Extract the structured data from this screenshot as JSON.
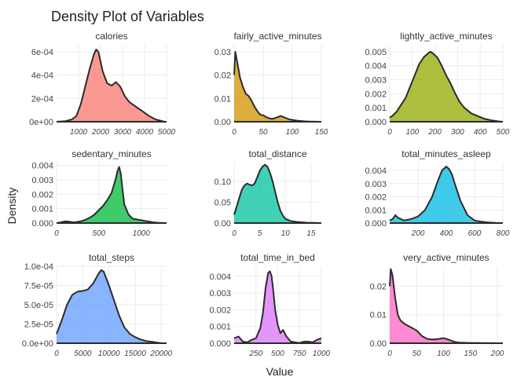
{
  "chart_data": {
    "type": "area",
    "title": "Density Plot of Variables",
    "xlabel": "Value",
    "ylabel": "Density",
    "grid": true,
    "legend": "none",
    "panels": [
      {
        "name": "calories",
        "color": "#F8766D",
        "xlim": [
          0,
          5000
        ],
        "ylim": [
          0,
          0.00066
        ],
        "xticks": [
          1000,
          2000,
          3000,
          4000,
          5000
        ],
        "yticks": [
          0,
          0.0002,
          0.0004,
          0.0006
        ],
        "ytick_labels": [
          "0e+00",
          "2e-04",
          "4e-04",
          "6e-04"
        ],
        "x": [
          0,
          400,
          700,
          900,
          1100,
          1300,
          1500,
          1700,
          1800,
          1900,
          2100,
          2300,
          2500,
          2700,
          2900,
          3100,
          3300,
          3600,
          3900,
          4200,
          4500,
          4900
        ],
        "y": [
          0,
          5e-06,
          2e-05,
          5e-05,
          0.00015,
          0.0003,
          0.00045,
          0.00058,
          0.00062,
          0.0006,
          0.00043,
          0.00033,
          0.00031,
          0.00034,
          0.0003,
          0.00022,
          0.00017,
          0.00013,
          9e-05,
          5e-05,
          2e-05,
          0
        ]
      },
      {
        "name": "fairly_active_minutes",
        "color": "#D39200",
        "xlim": [
          0,
          150
        ],
        "ylim": [
          0,
          0.033
        ],
        "xticks": [
          0,
          50,
          100,
          150
        ],
        "yticks": [
          0,
          0.01,
          0.02,
          0.03
        ],
        "ytick_labels": [
          "0.00",
          "0.01",
          "0.02",
          "0.03"
        ],
        "x": [
          0,
          2,
          5,
          10,
          15,
          20,
          25,
          30,
          35,
          40,
          45,
          50,
          55,
          60,
          65,
          70,
          75,
          80,
          85,
          90,
          95,
          100,
          110,
          120,
          130,
          140,
          145
        ],
        "y": [
          0.02,
          0.03,
          0.026,
          0.019,
          0.015,
          0.012,
          0.011,
          0.009,
          0.0065,
          0.0045,
          0.003,
          0.0028,
          0.002,
          0.0015,
          0.0012,
          0.0015,
          0.002,
          0.0025,
          0.002,
          0.0015,
          0.001,
          0.0008,
          0.0004,
          0.0002,
          0.0001,
          5e-05,
          0
        ]
      },
      {
        "name": "lightly_active_minutes",
        "color": "#93AA00",
        "xlim": [
          0,
          500
        ],
        "ylim": [
          0,
          0.0055
        ],
        "xticks": [
          0,
          100,
          200,
          300,
          400,
          500
        ],
        "yticks": [
          0,
          0.001,
          0.002,
          0.003,
          0.004,
          0.005
        ],
        "ytick_labels": [
          "0.000",
          "0.001",
          "0.002",
          "0.003",
          "0.004",
          "0.005"
        ],
        "x": [
          0,
          10,
          30,
          50,
          70,
          90,
          110,
          130,
          150,
          170,
          180,
          190,
          210,
          230,
          250,
          270,
          290,
          310,
          330,
          360,
          390,
          420,
          450,
          480,
          500
        ],
        "y": [
          0.0003,
          0.0004,
          0.0007,
          0.0012,
          0.0017,
          0.0025,
          0.0033,
          0.0041,
          0.0046,
          0.0049,
          0.005,
          0.0049,
          0.0046,
          0.004,
          0.0033,
          0.0027,
          0.002,
          0.0014,
          0.001,
          0.0006,
          0.0004,
          0.0002,
          0.0001,
          3e-05,
          0
        ]
      },
      {
        "name": "sedentary_minutes",
        "color": "#00BA38",
        "xlim": [
          0,
          1300
        ],
        "ylim": [
          0,
          0.0042
        ],
        "xticks": [
          0,
          500,
          1000
        ],
        "yticks": [
          0,
          0.001,
          0.002,
          0.003,
          0.004
        ],
        "ytick_labels": [
          "0.000",
          "0.001",
          "0.002",
          "0.003",
          "0.004"
        ],
        "x": [
          0,
          50,
          100,
          150,
          200,
          250,
          300,
          350,
          400,
          450,
          500,
          550,
          600,
          650,
          700,
          720,
          740,
          760,
          780,
          800,
          850,
          900,
          950,
          1000,
          1050,
          1100,
          1150,
          1200,
          1300
        ],
        "y": [
          0,
          5e-05,
          0.00012,
          0.0001,
          5e-05,
          8e-05,
          0.00015,
          0.00025,
          0.0004,
          0.0006,
          0.0009,
          0.0012,
          0.0016,
          0.0021,
          0.0031,
          0.0036,
          0.0039,
          0.0034,
          0.0023,
          0.0013,
          0.0006,
          0.0003,
          0.00025,
          0.0002,
          0.00015,
          0.0001,
          5e-05,
          2e-05,
          0
        ]
      },
      {
        "name": "total_distance",
        "color": "#00C19F",
        "xlim": [
          0,
          17
        ],
        "ylim": [
          0,
          0.145
        ],
        "xticks": [
          0,
          5,
          10,
          15
        ],
        "yticks": [
          0,
          0.05,
          0.1
        ],
        "ytick_labels": [
          "0.00",
          "0.05",
          "0.10"
        ],
        "x": [
          0,
          0.5,
          1,
          1.5,
          2,
          2.5,
          3,
          3.5,
          4,
          4.5,
          5,
          5.5,
          6,
          6.5,
          7,
          7.5,
          8,
          8.5,
          9,
          9.5,
          10,
          11,
          12,
          13,
          14,
          15,
          16,
          17
        ],
        "y": [
          0.02,
          0.04,
          0.06,
          0.08,
          0.09,
          0.095,
          0.092,
          0.09,
          0.095,
          0.11,
          0.125,
          0.135,
          0.14,
          0.135,
          0.12,
          0.1,
          0.075,
          0.05,
          0.03,
          0.018,
          0.01,
          0.005,
          0.003,
          0.002,
          0.001,
          0.0008,
          0.0004,
          0
        ]
      },
      {
        "name": "total_minutes_asleep",
        "color": "#00B9E3",
        "xlim": [
          0,
          800
        ],
        "ylim": [
          0,
          0.0046
        ],
        "xticks": [
          200,
          400,
          600,
          800
        ],
        "yticks": [
          0,
          0.001,
          0.002,
          0.003,
          0.004
        ],
        "ytick_labels": [
          "0.000",
          "0.001",
          "0.002",
          "0.003",
          "0.004"
        ],
        "x": [
          0,
          20,
          40,
          60,
          80,
          100,
          150,
          200,
          250,
          300,
          340,
          370,
          400,
          420,
          440,
          460,
          500,
          550,
          600,
          650,
          700,
          750,
          800
        ],
        "y": [
          0.0002,
          0.0003,
          0.0006,
          0.0004,
          0.0003,
          0.0002,
          0.0003,
          0.0005,
          0.001,
          0.002,
          0.0032,
          0.004,
          0.0043,
          0.0041,
          0.0037,
          0.003,
          0.0017,
          0.0006,
          0.0002,
          0.0001,
          5e-05,
          2e-05,
          0
        ]
      },
      {
        "name": "total_steps",
        "color": "#619CFF",
        "xlim": [
          0,
          21000
        ],
        "ylim": [
          0,
          0.0001
        ],
        "xticks": [
          0,
          5000,
          10000,
          15000,
          20000
        ],
        "yticks": [
          0,
          2.5e-05,
          5e-05,
          7.5e-05,
          0.0001
        ],
        "ytick_labels": [
          "0.0e+00",
          "2.5e-05",
          "5.0e-05",
          "7.5e-05",
          "1.0e-04"
        ],
        "x": [
          0,
          1000,
          2000,
          3000,
          4000,
          5000,
          6000,
          7000,
          8000,
          8500,
          9000,
          10000,
          11000,
          12000,
          13000,
          14000,
          15000,
          16000,
          17000,
          18000,
          19000,
          20000
        ],
        "y": [
          1.2e-05,
          3e-05,
          5e-05,
          6.3e-05,
          6.7e-05,
          6.8e-05,
          7e-05,
          7.8e-05,
          9e-05,
          9.5e-05,
          9.3e-05,
          7.5e-05,
          5.5e-05,
          3.5e-05,
          2e-05,
          1.2e-05,
          8e-06,
          5e-06,
          3e-06,
          2e-06,
          1e-06,
          0
        ]
      },
      {
        "name": "total_time_in_bed",
        "color": "#DB72FB",
        "xlim": [
          0,
          1000
        ],
        "ylim": [
          0,
          0.0046
        ],
        "xticks": [
          250,
          500,
          750,
          1000
        ],
        "yticks": [
          0,
          0.001,
          0.002,
          0.003,
          0.004
        ],
        "ytick_labels": [
          "0.000",
          "0.001",
          "0.002",
          "0.003",
          "0.004"
        ],
        "x": [
          0,
          50,
          100,
          150,
          200,
          250,
          300,
          330,
          360,
          390,
          410,
          430,
          450,
          470,
          500,
          530,
          560,
          600,
          650,
          700,
          750,
          800,
          850,
          900,
          950,
          1000
        ],
        "y": [
          0.0003,
          0.0004,
          0.0001,
          5e-05,
          0.0002,
          0.0003,
          0.0009,
          0.0018,
          0.0033,
          0.0042,
          0.0043,
          0.004,
          0.0031,
          0.002,
          0.0011,
          0.0006,
          0.0008,
          0.0004,
          0.0001,
          5e-05,
          2e-05,
          0.0001,
          0.0001,
          5e-05,
          0.0002,
          0.0003
        ]
      },
      {
        "name": "very_active_minutes",
        "color": "#FF61C3",
        "xlim": [
          0,
          210
        ],
        "ylim": [
          0,
          0.027
        ],
        "xticks": [
          0,
          50,
          100,
          150,
          200
        ],
        "yticks": [
          0,
          0.01,
          0.02
        ],
        "ytick_labels": [
          "0.00",
          "0.01",
          "0.02"
        ],
        "x": [
          0,
          2,
          5,
          10,
          15,
          20,
          25,
          30,
          40,
          50,
          60,
          70,
          80,
          90,
          100,
          110,
          120,
          130,
          150,
          170,
          190,
          200
        ],
        "y": [
          0.02,
          0.026,
          0.024,
          0.016,
          0.01,
          0.008,
          0.0072,
          0.0065,
          0.0055,
          0.0045,
          0.0025,
          0.0015,
          0.0013,
          0.0015,
          0.0018,
          0.0012,
          0.0005,
          0.0002,
          0.0001,
          5e-05,
          2e-05,
          0
        ]
      }
    ]
  }
}
